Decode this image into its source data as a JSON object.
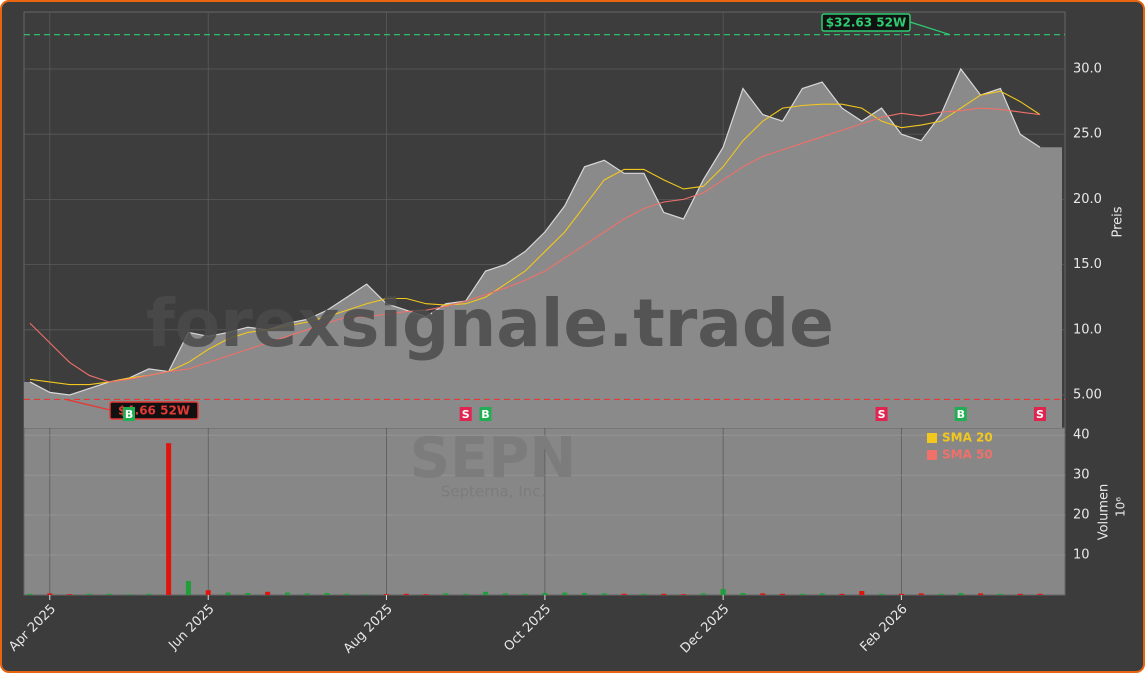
{
  "chart_data": [
    {
      "type": "area",
      "watermark": "forexsignale.trade",
      "ticker": "SEPN",
      "company": "Septerna, Inc.",
      "ylabel": "Preis",
      "categories": [
        null,
        "Apr 2025",
        null,
        null,
        null,
        null,
        null,
        null,
        null,
        "Jun 2025",
        null,
        null,
        null,
        null,
        null,
        null,
        null,
        null,
        "Aug 2025",
        null,
        null,
        null,
        null,
        null,
        null,
        null,
        "Oct 2025",
        null,
        null,
        null,
        null,
        null,
        null,
        null,
        null,
        "Dec 2025",
        null,
        null,
        null,
        null,
        null,
        null,
        null,
        null,
        "Feb 2026",
        null,
        null,
        null,
        null,
        null,
        null,
        null
      ],
      "values": [
        6.0,
        5.2,
        5.0,
        5.5,
        6.0,
        6.3,
        7.0,
        6.8,
        9.8,
        9.5,
        9.8,
        10.2,
        10.0,
        10.5,
        10.8,
        11.5,
        12.5,
        13.5,
        12.0,
        11.5,
        11.0,
        12.0,
        12.2,
        14.5,
        15.0,
        16.0,
        17.5,
        19.5,
        22.5,
        23.0,
        22.0,
        22.0,
        19.0,
        18.5,
        21.5,
        24.0,
        28.5,
        26.5,
        26.0,
        28.5,
        29.0,
        27.0,
        26.0,
        27.0,
        25.0,
        24.5,
        26.5,
        30.0,
        28.0,
        28.5,
        25.0,
        24.0
      ],
      "color": "#8a8a8a",
      "series": [
        {
          "name": "SMA 20",
          "color": "#f2c81e",
          "values": [
            6.2,
            6.0,
            5.8,
            5.8,
            6.0,
            6.3,
            6.5,
            6.8,
            7.5,
            8.5,
            9.3,
            9.8,
            10.0,
            10.3,
            10.6,
            11.0,
            11.5,
            12.0,
            12.4,
            12.4,
            12.0,
            11.9,
            12.0,
            12.5,
            13.5,
            14.5,
            16.0,
            17.5,
            19.5,
            21.5,
            22.3,
            22.3,
            21.5,
            20.8,
            21.0,
            22.5,
            24.5,
            26.0,
            27.0,
            27.2,
            27.3,
            27.3,
            27.0,
            26.0,
            25.5,
            25.7,
            26.0,
            27.0,
            28.0,
            28.3,
            27.5,
            26.5
          ]
        },
        {
          "name": "SMA 50",
          "color": "#f0706a",
          "values": [
            10.5,
            9.0,
            7.5,
            6.5,
            6.0,
            6.2,
            6.5,
            6.8,
            7.0,
            7.5,
            8.0,
            8.5,
            9.0,
            9.5,
            10.0,
            10.5,
            11.0,
            11.0,
            11.2,
            11.4,
            11.5,
            11.8,
            12.2,
            12.7,
            13.2,
            13.8,
            14.5,
            15.5,
            16.5,
            17.5,
            18.5,
            19.3,
            19.8,
            20.0,
            20.5,
            21.5,
            22.5,
            23.3,
            23.8,
            24.3,
            24.8,
            25.3,
            25.8,
            26.3,
            26.6,
            26.4,
            26.7,
            26.8,
            27.0,
            26.9,
            26.7,
            26.5
          ]
        }
      ],
      "signals": [
        null,
        null,
        null,
        null,
        null,
        "B",
        null,
        null,
        null,
        null,
        null,
        null,
        null,
        null,
        null,
        null,
        null,
        null,
        null,
        null,
        null,
        null,
        "S",
        "B",
        null,
        null,
        null,
        null,
        null,
        null,
        null,
        null,
        null,
        null,
        null,
        null,
        null,
        null,
        null,
        null,
        null,
        null,
        null,
        "S",
        null,
        null,
        null,
        "B",
        null,
        null,
        null,
        "S"
      ],
      "signal_colors": {
        "B": "#1fae52",
        "S": "#e0244f"
      },
      "high": {
        "value": 32.63,
        "label": "$32.63 52W",
        "color": "#2ecc71"
      },
      "low": {
        "value": 4.66,
        "label": "$4.66 52W",
        "color": "#e53935"
      },
      "ylim": [
        2.47,
        34.37
      ],
      "yticks": [
        {
          "value": 5,
          "label": "5.00"
        },
        {
          "value": 10,
          "label": "10.0"
        },
        {
          "value": 15,
          "label": "15.0"
        },
        {
          "value": 20,
          "label": "20.0"
        },
        {
          "value": 25,
          "label": "25.0"
        },
        {
          "value": 30,
          "label": "30.0"
        }
      ],
      "grid": true
    },
    {
      "type": "bar",
      "ylabel": "Volumen",
      "yunit": "10⁶",
      "values": [
        0.3,
        0.4,
        0.2,
        0.3,
        0.3,
        0.2,
        0.3,
        38,
        3.5,
        1.2,
        0.6,
        0.5,
        0.8,
        0.6,
        0.4,
        0.5,
        0.3,
        0.2,
        0.2,
        0.3,
        0.2,
        0.4,
        0.3,
        0.8,
        0.4,
        0.3,
        0.5,
        0.6,
        0.5,
        0.4,
        0.3,
        0.3,
        0.3,
        0.2,
        0.4,
        1.5,
        0.5,
        0.4,
        0.3,
        0.3,
        0.4,
        0.3,
        1.0,
        0.3,
        0.3,
        0.4,
        0.3,
        0.5,
        0.4,
        0.3,
        0.3,
        0.3
      ],
      "up_color": "#1f9e3a",
      "down_color": "#e0140e",
      "ylim": [
        0,
        41.8
      ],
      "yticks": [
        10,
        20,
        30,
        40
      ],
      "grid": true
    }
  ]
}
